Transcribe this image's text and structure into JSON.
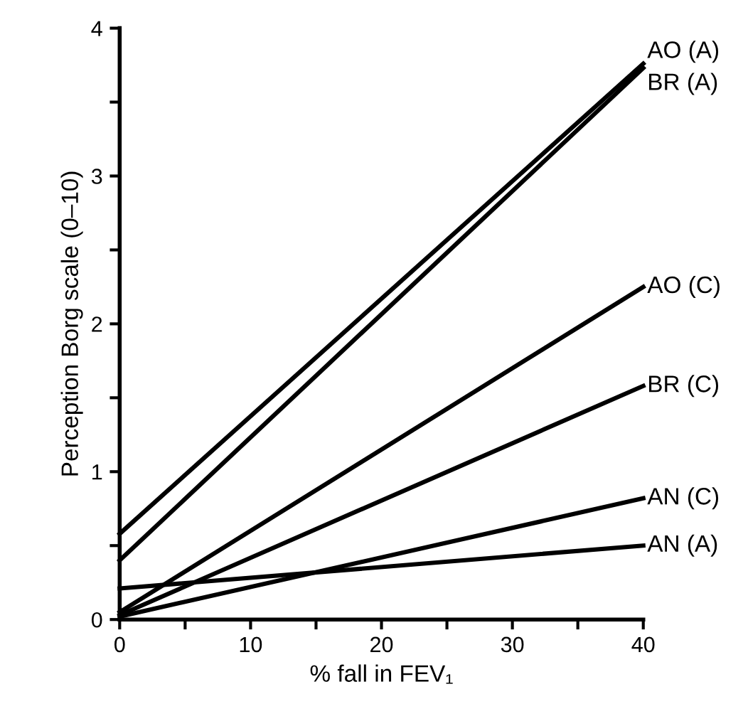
{
  "chart_data": {
    "type": "line",
    "xlabel": "% fall in FEV₁",
    "ylabel": "Perception Borg scale (0–10)",
    "xlim": [
      0,
      40
    ],
    "ylim": [
      0,
      4
    ],
    "xticks": [
      0,
      {
        "value": 5,
        "label": null
      },
      10,
      {
        "value": 15,
        "label": null
      },
      20,
      {
        "value": 25,
        "label": null
      },
      30,
      {
        "value": 35,
        "label": null
      },
      40
    ],
    "yticks": [
      0,
      {
        "value": 0.5,
        "label": null
      },
      1,
      {
        "value": 1.5,
        "label": null
      },
      2,
      {
        "value": 2.5,
        "label": null
      },
      3,
      {
        "value": 3.5,
        "label": null
      },
      4
    ],
    "x": [
      0,
      40
    ],
    "grid": false,
    "legend": false,
    "marker": "none",
    "line_style": "solid",
    "series": [
      {
        "name": "AO (A)",
        "color": "#000000",
        "values": [
          0.58,
          3.76
        ]
      },
      {
        "name": "BR (A)",
        "color": "#000000",
        "values": [
          0.4,
          3.73
        ]
      },
      {
        "name": "AO (C)",
        "color": "#000000",
        "values": [
          0.05,
          2.25
        ]
      },
      {
        "name": "BR (C)",
        "color": "#000000",
        "values": [
          0.03,
          1.58
        ]
      },
      {
        "name": "AN (C)",
        "color": "#000000",
        "values": [
          0.02,
          0.82
        ]
      },
      {
        "name": "AN (A)",
        "color": "#000000",
        "values": [
          0.21,
          0.5
        ]
      }
    ]
  }
}
